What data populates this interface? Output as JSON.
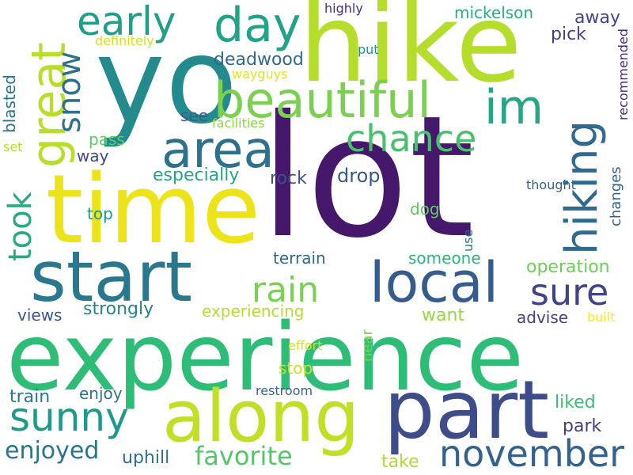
{
  "words": [
    {
      "text": "lot",
      "color": "#46186b",
      "rotate": false
    },
    {
      "text": "hike",
      "color": "#b5dd2b",
      "rotate": false
    },
    {
      "text": "yo",
      "color": "#238a8d",
      "rotate": false
    },
    {
      "text": "experience",
      "color": "#2dbd76",
      "rotate": false
    },
    {
      "text": "time",
      "color": "#ece319",
      "rotate": false
    },
    {
      "text": "part",
      "color": "#3e4c8a",
      "rotate": false
    },
    {
      "text": "along",
      "color": "#c3df25",
      "rotate": false
    },
    {
      "text": "start",
      "color": "#2a788e",
      "rotate": false
    },
    {
      "text": "beautiful",
      "color": "#7bd052",
      "rotate": false
    },
    {
      "text": "local",
      "color": "#365c8d",
      "rotate": false
    },
    {
      "text": "area",
      "color": "#2c718e",
      "rotate": false
    },
    {
      "text": "great",
      "color": "#b8de29",
      "rotate": true
    },
    {
      "text": "hiking",
      "color": "#2f6b8e",
      "rotate": true
    },
    {
      "text": "day",
      "color": "#20a386",
      "rotate": false
    },
    {
      "text": "early",
      "color": "#1f9f88",
      "rotate": false
    },
    {
      "text": "im",
      "color": "#22a884",
      "rotate": false
    },
    {
      "text": "sunny",
      "color": "#1e9a8a",
      "rotate": false
    },
    {
      "text": "november",
      "color": "#33628d",
      "rotate": false
    },
    {
      "text": "chance",
      "color": "#48c16e",
      "rotate": false
    },
    {
      "text": "sure",
      "color": "#414487",
      "rotate": false
    },
    {
      "text": "rain",
      "color": "#79d151",
      "rotate": false
    },
    {
      "text": "took",
      "color": "#25ab82",
      "rotate": true
    },
    {
      "text": "snow",
      "color": "#2d718e",
      "rotate": true
    },
    {
      "text": "enjoyed",
      "color": "#2a768e",
      "rotate": false
    },
    {
      "text": "favorite",
      "color": "#55c667",
      "rotate": false
    },
    {
      "text": "deadwood",
      "color": "#30698e",
      "rotate": false
    },
    {
      "text": "mickelson",
      "color": "#29af7f",
      "rotate": false
    },
    {
      "text": "away",
      "color": "#3f4788",
      "rotate": false
    },
    {
      "text": "pick",
      "color": "#424186",
      "rotate": false
    },
    {
      "text": "highly",
      "color": "#472d7b",
      "rotate": false
    },
    {
      "text": "definitely",
      "color": "#d2e21b",
      "rotate": false
    },
    {
      "text": "put",
      "color": "#21918c",
      "rotate": false
    },
    {
      "text": "wayguys",
      "color": "#e5e419",
      "rotate": false
    },
    {
      "text": "recommended",
      "color": "#472a7a",
      "rotate": true
    },
    {
      "text": "blasted",
      "color": "#2b748e",
      "rotate": true
    },
    {
      "text": "see",
      "color": "#355e8d",
      "rotate": false
    },
    {
      "text": "facilities",
      "color": "#8bd646",
      "rotate": false
    },
    {
      "text": "set",
      "color": "#b2dd2d",
      "rotate": false
    },
    {
      "text": "pass",
      "color": "#60ca60",
      "rotate": false
    },
    {
      "text": "way",
      "color": "#3e4a89",
      "rotate": false
    },
    {
      "text": "especially",
      "color": "#22a785",
      "rotate": false
    },
    {
      "text": "rock",
      "color": "#3b518b",
      "rotate": false
    },
    {
      "text": "drop",
      "color": "#38588c",
      "rotate": false
    },
    {
      "text": "thought",
      "color": "#33638d",
      "rotate": false
    },
    {
      "text": "changes",
      "color": "#33638d",
      "rotate": true
    },
    {
      "text": "dog",
      "color": "#5ec962",
      "rotate": false
    },
    {
      "text": "top",
      "color": "#1f978b",
      "rotate": false
    },
    {
      "text": "use",
      "color": "#2e6e8e",
      "rotate": true
    },
    {
      "text": "terrain",
      "color": "#31668e",
      "rotate": false
    },
    {
      "text": "someone",
      "color": "#2fb47c",
      "rotate": false
    },
    {
      "text": "operation",
      "color": "#6ece58",
      "rotate": false
    },
    {
      "text": "experiencing",
      "color": "#b5de2b",
      "rotate": false
    },
    {
      "text": "strongly",
      "color": "#26828e",
      "rotate": false
    },
    {
      "text": "views",
      "color": "#3a548c",
      "rotate": false
    },
    {
      "text": "want",
      "color": "#98d83e",
      "rotate": false
    },
    {
      "text": "advise",
      "color": "#433e85",
      "rotate": false
    },
    {
      "text": "built",
      "color": "#fde725",
      "rotate": false
    },
    {
      "text": "effort",
      "color": "#d8e219",
      "rotate": false
    },
    {
      "text": "near",
      "color": "#7ad151",
      "rotate": true
    },
    {
      "text": "stop",
      "color": "#cae11f",
      "rotate": false
    },
    {
      "text": "train",
      "color": "#2a788e",
      "rotate": false
    },
    {
      "text": "enjoy",
      "color": "#2c728e",
      "rotate": false
    },
    {
      "text": "restroom",
      "color": "#31688e",
      "rotate": false
    },
    {
      "text": "liked",
      "color": "#3dbc74",
      "rotate": false
    },
    {
      "text": "park",
      "color": "#433e85",
      "rotate": false
    },
    {
      "text": "uphill",
      "color": "#2d708e",
      "rotate": false
    },
    {
      "text": "take",
      "color": "#addc30",
      "rotate": false
    }
  ]
}
